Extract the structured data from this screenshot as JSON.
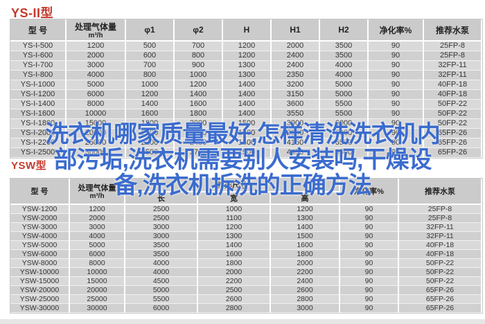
{
  "accent_red": "#c43a2c",
  "overlay": {
    "color": "#3b6cce",
    "full_text": "洗衣机哪家质量最好,怎样清洗洗衣机内部污垢,洗衣机需要别人安装吗,干燥设备,洗衣机拆洗的正确方法",
    "lines": [
      "洗衣机哪家质量最好,怎样清洗洗衣机内",
      "部污垢,洗衣机需要别人安装吗,干燥设",
      "备,洗衣机拆洗的正确方法"
    ]
  },
  "table1": {
    "title": "YS-II型",
    "headers": {
      "model": "型 号",
      "gas": "处理气体量",
      "gas_unit": "m³/h",
      "d1": "φ1",
      "d2": "φ2",
      "h": "H",
      "h1": "H1",
      "h2": "H2",
      "purify": "净化率%",
      "pump": "推荐水泵"
    },
    "rows": [
      [
        "YS-I-500",
        "1200",
        "500",
        "700",
        "1200",
        "2000",
        "3500",
        "90",
        "25FP-8"
      ],
      [
        "YS-I-600",
        "2000",
        "600",
        "800",
        "1200",
        "2400",
        "3500",
        "90",
        "25FP-8"
      ],
      [
        "YS-I-700",
        "3000",
        "700",
        "900",
        "1300",
        "2400",
        "4000",
        "90",
        "32FP-11"
      ],
      [
        "YS-I-800",
        "4000",
        "800",
        "1000",
        "1300",
        "2350",
        "4000",
        "90",
        "32FP-11"
      ],
      [
        "YS-I-1000",
        "5000",
        "1000",
        "1200",
        "1400",
        "3200",
        "5000",
        "90",
        "40FP-18"
      ],
      [
        "YS-I-1200",
        "6000",
        "1200",
        "1400",
        "1400",
        "3150",
        "5000",
        "90",
        "40FP-18"
      ],
      [
        "YS-I-1400",
        "8000",
        "1400",
        "1600",
        "1400",
        "3600",
        "5500",
        "90",
        "50FP-22"
      ],
      [
        "YS-I-1600",
        "10000",
        "1600",
        "1800",
        "1400",
        "3550",
        "5500",
        "90",
        "50FP-22"
      ],
      [
        "YS-I-1800",
        "15000",
        "1800",
        "2000",
        "1500",
        "3900",
        "6000",
        "90",
        "50FP-22"
      ],
      [
        "YS-I-2000",
        "20000",
        "2000",
        "2200",
        "1500",
        "3850",
        "6000",
        "90",
        "65FP-26"
      ],
      [
        "YS-I-2200",
        "25000",
        "2200",
        "2400",
        "1500",
        "4150",
        "6500",
        "90",
        "65FP-26"
      ],
      [
        "YS-I-2500",
        "30000",
        "2500",
        "2700",
        "1500",
        "4450",
        "6500",
        "90",
        "65FP-26"
      ]
    ]
  },
  "table2": {
    "title": "YSW型",
    "headers": {
      "model": "型 号",
      "gas": "处理气体量",
      "gas_unit": "m³/h",
      "dims": "外形尺寸",
      "len": "长",
      "width": "宽",
      "height": "高",
      "purify": "净化率%",
      "pump": "推荐水泵"
    },
    "rows": [
      [
        "YSW-1200",
        "1200",
        "2500",
        "1000",
        "1200",
        "90",
        "25FP-8"
      ],
      [
        "YSW-2000",
        "2000",
        "2500",
        "1100",
        "1300",
        "90",
        "25FP-8"
      ],
      [
        "YSW-3000",
        "3000",
        "3000",
        "1200",
        "1400",
        "90",
        "32FP-11"
      ],
      [
        "YSW-4000",
        "4000",
        "3000",
        "1300",
        "1500",
        "90",
        "32FP-11"
      ],
      [
        "YSW-5000",
        "5000",
        "3500",
        "1400",
        "1600",
        "90",
        "40FP-18"
      ],
      [
        "YSW-6000",
        "6000",
        "3500",
        "1600",
        "1800",
        "90",
        "40FP-18"
      ],
      [
        "YSW-8000",
        "8000",
        "4000",
        "1800",
        "2000",
        "90",
        "50FP-22"
      ],
      [
        "YSW-10000",
        "10000",
        "4000",
        "2000",
        "2200",
        "90",
        "50FP-22"
      ],
      [
        "YSW-15000",
        "15000",
        "4500",
        "2200",
        "2400",
        "90",
        "50FP-22"
      ],
      [
        "YSW-20000",
        "20000",
        "5000",
        "2500",
        "2600",
        "90",
        "65FP-26"
      ],
      [
        "YSW-25000",
        "25000",
        "5500",
        "2600",
        "2800",
        "90",
        "65FP-26"
      ],
      [
        "YSW-30000",
        "30000",
        "6000",
        "2800",
        "3000",
        "90",
        "65FP-26"
      ]
    ]
  }
}
